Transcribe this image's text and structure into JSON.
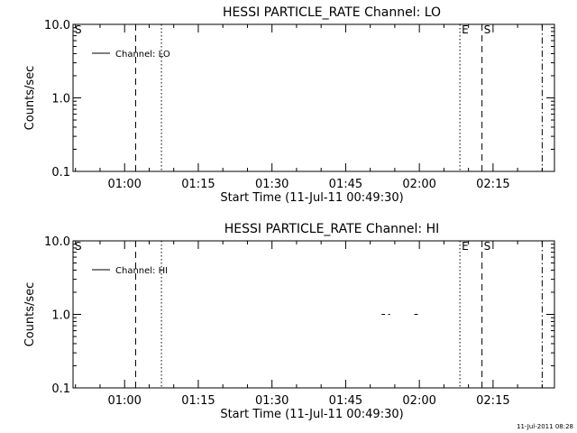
{
  "footer_timestamp": "11-Jul-2011 08:28",
  "chart_data": [
    {
      "type": "line",
      "title": "HESSI PARTICLE_RATE Channel: LO",
      "xlabel": "Start Time (11-Jul-11 00:49:30)",
      "ylabel": "Counts/sec",
      "yscale": "log",
      "ylim": [
        0.1,
        10.0
      ],
      "y_ticks": [
        {
          "value": 10.0,
          "label": "10.0"
        },
        {
          "value": 1.0,
          "label": "1.0"
        },
        {
          "value": 0.1,
          "label": "0.1"
        }
      ],
      "xlim": [
        "00:49:30",
        "02:27:30"
      ],
      "x_ticks": [
        "01:00",
        "01:15",
        "01:30",
        "01:45",
        "02:00",
        "02:15"
      ],
      "grid": false,
      "legend": {
        "position": "top-left",
        "entries": [
          {
            "name": "Channel: LO",
            "line": "solid"
          }
        ]
      },
      "series": [
        {
          "name": "Channel: LO",
          "x": [],
          "y": []
        }
      ],
      "markers": [
        {
          "time": "00:49:30",
          "style": "dashdot",
          "label": "S"
        },
        {
          "time": "01:02:15",
          "style": "dashed",
          "label": ""
        },
        {
          "time": "01:07:30",
          "style": "dotted",
          "label": ""
        },
        {
          "time": "02:08:15",
          "style": "dotted",
          "label": "E"
        },
        {
          "time": "02:12:45",
          "style": "dashed",
          "label": "S"
        },
        {
          "time": "02:25:00",
          "style": "dashdot",
          "label": ""
        }
      ]
    },
    {
      "type": "line",
      "title": "HESSI PARTICLE_RATE Channel: HI",
      "xlabel": "Start Time (11-Jul-11 00:49:30)",
      "ylabel": "Counts/sec",
      "yscale": "log",
      "ylim": [
        0.1,
        10.0
      ],
      "y_ticks": [
        {
          "value": 10.0,
          "label": "10.0"
        },
        {
          "value": 1.0,
          "label": "1.0"
        },
        {
          "value": 0.1,
          "label": "0.1"
        }
      ],
      "xlim": [
        "00:49:30",
        "02:27:30"
      ],
      "x_ticks": [
        "01:00",
        "01:15",
        "01:30",
        "01:45",
        "02:00",
        "02:15"
      ],
      "grid": false,
      "legend": {
        "position": "top-left",
        "entries": [
          {
            "name": "Channel: HI",
            "line": "solid"
          }
        ]
      },
      "series": [
        {
          "name": "Channel: HI",
          "x": [
            "01:52:30",
            "01:52:50",
            "01:53:50",
            "01:59:10",
            "01:59:30"
          ],
          "y": [
            1.0,
            1.0,
            1.0,
            1.0,
            1.0
          ]
        }
      ],
      "markers": [
        {
          "time": "00:49:30",
          "style": "dashdot",
          "label": "S"
        },
        {
          "time": "01:02:15",
          "style": "dashed",
          "label": ""
        },
        {
          "time": "01:07:30",
          "style": "dotted",
          "label": ""
        },
        {
          "time": "02:08:15",
          "style": "dotted",
          "label": "E"
        },
        {
          "time": "02:12:45",
          "style": "dashed",
          "label": "S"
        },
        {
          "time": "02:25:00",
          "style": "dashdot",
          "label": ""
        }
      ]
    }
  ]
}
